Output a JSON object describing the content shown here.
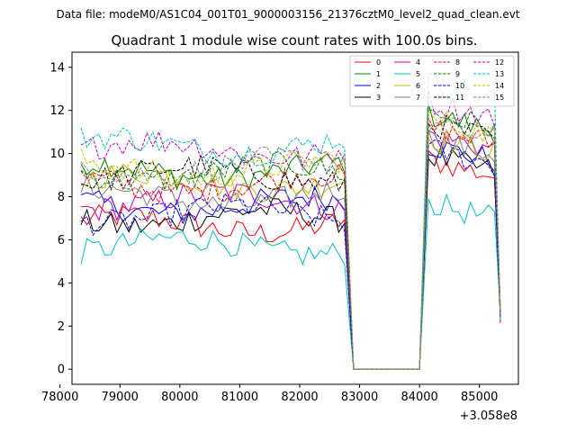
{
  "header": {
    "file_line": "Data file: modeM0/AS1C04_001T01_9000003156_21376cztM0_level2_quad_clean.evt",
    "title": "Quadrant 1 module wise count rates with 100.0s bins."
  },
  "chart_data": {
    "type": "line",
    "title": "Quadrant 1 module wise count rates with 100.0s bins.",
    "xlabel": "",
    "ylabel": "",
    "x_offset_label": "+3.058e8",
    "xlim": [
      78200,
      85650
    ],
    "ylim": [
      -0.7,
      14.7
    ],
    "xticks": [
      78000,
      79000,
      80000,
      81000,
      82000,
      83000,
      84000,
      85000
    ],
    "yticks": [
      0,
      2,
      4,
      6,
      8,
      10,
      12,
      14
    ],
    "xtick_labels": [
      "78000",
      "79000",
      "80000",
      "81000",
      "82000",
      "83000",
      "84000",
      "85000"
    ],
    "ytick_labels": [
      "0",
      "2",
      "4",
      "6",
      "8",
      "10",
      "12",
      "14"
    ],
    "grid": false,
    "legend_position": "top-right",
    "segments": {
      "seg1_x_start": 78350,
      "seg1_x_end": 82750,
      "gap_x": [
        82900,
        84000
      ],
      "seg2_x_start": 84150,
      "seg2_x_end": 85350,
      "step": 100
    },
    "series": [
      {
        "name": "0",
        "color": "#ff0000",
        "dash": "solid",
        "level": 6.7,
        "level2": 8.9
      },
      {
        "name": "1",
        "color": "#008000",
        "dash": "solid",
        "level": 9.2,
        "level2": 11.0
      },
      {
        "name": "2",
        "color": "#0000ff",
        "dash": "solid",
        "level": 7.6,
        "level2": 9.6
      },
      {
        "name": "3",
        "color": "#000000",
        "dash": "solid",
        "level": 7.0,
        "level2": 9.1
      },
      {
        "name": "4",
        "color": "#bf00bf",
        "dash": "solid",
        "level": 7.8,
        "level2": 10.1
      },
      {
        "name": "5",
        "color": "#00bfbf",
        "dash": "solid",
        "level": 5.7,
        "level2": 6.9
      },
      {
        "name": "6",
        "color": "#bfbf00",
        "dash": "solid",
        "level": 8.7,
        "level2": 10.0
      },
      {
        "name": "7",
        "color": "#808080",
        "dash": "solid",
        "level": 8.0,
        "level2": 9.9
      },
      {
        "name": "8",
        "color": "#ff0000",
        "dash": "dashed",
        "level": 8.6,
        "level2": 10.4
      },
      {
        "name": "9",
        "color": "#008000",
        "dash": "dashed",
        "level": 9.1,
        "level2": 11.1
      },
      {
        "name": "10",
        "color": "#0000ff",
        "dash": "dashed",
        "level": 7.2,
        "level2": 9.4
      },
      {
        "name": "11",
        "color": "#000000",
        "dash": "dashed",
        "level": 9.0,
        "level2": 10.6
      },
      {
        "name": "12",
        "color": "#bf00bf",
        "dash": "dashed",
        "level": 10.2,
        "level2": 11.6
      },
      {
        "name": "13",
        "color": "#00bfbf",
        "dash": "dashed",
        "level": 10.4,
        "level2": 12.5
      },
      {
        "name": "14",
        "color": "#bfbf00",
        "dash": "dashed",
        "level": 9.3,
        "level2": 10.8
      },
      {
        "name": "15",
        "color": "#808080",
        "dash": "dashed",
        "level": 9.4,
        "level2": 10.6
      }
    ]
  }
}
